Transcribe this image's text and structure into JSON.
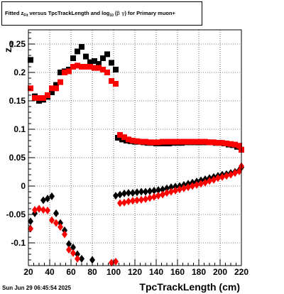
{
  "title_parts": {
    "prefix": "Fitted  z",
    "z_sub": "Fit",
    "middle": "  versus TpcTrackLength and log",
    "log_sub": "10",
    "bg_open": " (",
    "beta": "β",
    "gamma": "γ",
    "suffix": ") for Primary muon+"
  },
  "ylabel_parts": {
    "main": "z",
    "sub": "Fit"
  },
  "xlabel": "TpcTrackLength (cm)",
  "date": "Sun Jun 29 06:45:54 2025",
  "chart_data": {
    "type": "scatter",
    "xlim": [
      20,
      220
    ],
    "ylim": [
      -0.14,
      0.275
    ],
    "x_ticks": [
      20,
      40,
      60,
      80,
      100,
      120,
      140,
      160,
      180,
      200,
      220
    ],
    "y_ticks": [
      -0.1,
      -0.05,
      0,
      0.05,
      0.1,
      0.15,
      0.2,
      0.25
    ],
    "x_tick_labels": [
      "20",
      "40",
      "60",
      "80",
      "100",
      "120",
      "140",
      "160",
      "180",
      "200",
      "220"
    ],
    "y_tick_labels": [
      "-0.1",
      "-0.05",
      "0",
      "0.05",
      "0.1",
      "0.15",
      "0.2",
      "0.25"
    ],
    "grid": true,
    "series": [
      {
        "color": "#000000",
        "marker": "square",
        "points": [
          [
            22,
            0.222
          ],
          [
            26,
            0.158
          ],
          [
            30,
            0.15
          ],
          [
            34,
            0.152
          ],
          [
            38,
            0.157
          ],
          [
            42,
            0.165
          ],
          [
            46,
            0.178
          ],
          [
            50,
            0.2
          ],
          [
            54,
            0.202
          ],
          [
            58,
            0.205
          ],
          [
            62,
            0.225
          ],
          [
            66,
            0.237
          ],
          [
            70,
            0.245
          ],
          [
            74,
            0.228
          ],
          [
            78,
            0.218
          ],
          [
            82,
            0.22
          ],
          [
            86,
            0.215
          ],
          [
            90,
            0.225
          ],
          [
            94,
            0.232
          ],
          [
            98,
            0.217
          ],
          [
            102,
            0.205
          ],
          [
            104,
            0.085
          ],
          [
            108,
            0.082
          ],
          [
            112,
            0.08
          ],
          [
            116,
            0.079
          ],
          [
            120,
            0.078
          ],
          [
            124,
            0.078
          ],
          [
            128,
            0.077
          ],
          [
            132,
            0.076
          ],
          [
            136,
            0.076
          ],
          [
            140,
            0.075
          ],
          [
            144,
            0.075
          ],
          [
            148,
            0.075
          ],
          [
            152,
            0.075
          ],
          [
            156,
            0.076
          ],
          [
            160,
            0.076
          ],
          [
            164,
            0.076
          ],
          [
            168,
            0.077
          ],
          [
            172,
            0.077
          ],
          [
            176,
            0.077
          ],
          [
            180,
            0.077
          ],
          [
            184,
            0.077
          ],
          [
            188,
            0.077
          ],
          [
            192,
            0.077
          ],
          [
            196,
            0.076
          ],
          [
            200,
            0.076
          ],
          [
            204,
            0.075
          ],
          [
            208,
            0.073
          ],
          [
            212,
            0.072
          ],
          [
            216,
            0.069
          ],
          [
            220,
            0.064
          ]
        ]
      },
      {
        "color": "#ff0000",
        "marker": "square",
        "points": [
          [
            22,
            0.172
          ],
          [
            26,
            0.155
          ],
          [
            30,
            0.155
          ],
          [
            34,
            0.155
          ],
          [
            38,
            0.16
          ],
          [
            42,
            0.172
          ],
          [
            46,
            0.172
          ],
          [
            50,
            0.183
          ],
          [
            54,
            0.2
          ],
          [
            58,
            0.202
          ],
          [
            62,
            0.21
          ],
          [
            66,
            0.212
          ],
          [
            70,
            0.21
          ],
          [
            74,
            0.21
          ],
          [
            78,
            0.21
          ],
          [
            82,
            0.208
          ],
          [
            86,
            0.208
          ],
          [
            90,
            0.205
          ],
          [
            94,
            0.2
          ],
          [
            98,
            0.185
          ],
          [
            102,
            0.18
          ],
          [
            106,
            0.09
          ],
          [
            110,
            0.086
          ],
          [
            114,
            0.082
          ],
          [
            118,
            0.08
          ],
          [
            122,
            0.079
          ],
          [
            126,
            0.078
          ],
          [
            130,
            0.078
          ],
          [
            134,
            0.077
          ],
          [
            138,
            0.077
          ],
          [
            142,
            0.077
          ],
          [
            146,
            0.078
          ],
          [
            150,
            0.078
          ],
          [
            154,
            0.078
          ],
          [
            158,
            0.078
          ],
          [
            162,
            0.078
          ],
          [
            166,
            0.078
          ],
          [
            170,
            0.078
          ],
          [
            174,
            0.078
          ],
          [
            178,
            0.078
          ],
          [
            182,
            0.078
          ],
          [
            186,
            0.078
          ],
          [
            190,
            0.077
          ],
          [
            194,
            0.077
          ],
          [
            198,
            0.076
          ],
          [
            202,
            0.076
          ],
          [
            206,
            0.075
          ],
          [
            210,
            0.074
          ],
          [
            214,
            0.073
          ],
          [
            218,
            0.071
          ],
          [
            220,
            0.064
          ]
        ]
      },
      {
        "color": "#000000",
        "marker": "diamond",
        "points": [
          [
            22,
            -0.062
          ],
          [
            26,
            -0.048
          ],
          [
            30,
            -0.04
          ],
          [
            34,
            -0.025
          ],
          [
            38,
            -0.022
          ],
          [
            42,
            -0.018
          ],
          [
            46,
            -0.048
          ],
          [
            50,
            -0.065
          ],
          [
            54,
            -0.078
          ],
          [
            58,
            -0.102
          ],
          [
            62,
            -0.108
          ],
          [
            66,
            -0.12
          ],
          [
            70,
            -0.128
          ],
          [
            80,
            -0.13
          ],
          [
            102,
            -0.017
          ],
          [
            106,
            -0.015
          ],
          [
            110,
            -0.013
          ],
          [
            114,
            -0.012
          ],
          [
            118,
            -0.012
          ],
          [
            122,
            -0.011
          ],
          [
            126,
            -0.01
          ],
          [
            130,
            -0.01
          ],
          [
            134,
            -0.009
          ],
          [
            138,
            -0.008
          ],
          [
            142,
            -0.007
          ],
          [
            146,
            -0.006
          ],
          [
            150,
            -0.004
          ],
          [
            154,
            -0.002
          ],
          [
            158,
            -0.001
          ],
          [
            162,
            0.0
          ],
          [
            166,
            0.002
          ],
          [
            170,
            0.004
          ],
          [
            174,
            0.006
          ],
          [
            178,
            0.008
          ],
          [
            182,
            0.01
          ],
          [
            186,
            0.012
          ],
          [
            190,
            0.014
          ],
          [
            194,
            0.016
          ],
          [
            198,
            0.018
          ],
          [
            202,
            0.02
          ],
          [
            206,
            0.021
          ],
          [
            210,
            0.023
          ],
          [
            214,
            0.025
          ],
          [
            218,
            0.028
          ],
          [
            220,
            0.033
          ]
        ]
      },
      {
        "color": "#ff0000",
        "marker": "diamond",
        "points": [
          [
            22,
            -0.075
          ],
          [
            26,
            -0.042
          ],
          [
            30,
            -0.04
          ],
          [
            34,
            -0.042
          ],
          [
            38,
            -0.043
          ],
          [
            42,
            -0.06
          ],
          [
            46,
            -0.065
          ],
          [
            50,
            -0.072
          ],
          [
            54,
            -0.085
          ],
          [
            58,
            -0.112
          ],
          [
            62,
            -0.118
          ],
          [
            66,
            -0.128
          ],
          [
            98,
            -0.135
          ],
          [
            102,
            -0.133
          ],
          [
            106,
            -0.03
          ],
          [
            110,
            -0.029
          ],
          [
            114,
            -0.027
          ],
          [
            118,
            -0.026
          ],
          [
            122,
            -0.025
          ],
          [
            126,
            -0.024
          ],
          [
            130,
            -0.023
          ],
          [
            134,
            -0.021
          ],
          [
            138,
            -0.019
          ],
          [
            142,
            -0.017
          ],
          [
            146,
            -0.015
          ],
          [
            150,
            -0.012
          ],
          [
            154,
            -0.01
          ],
          [
            158,
            -0.008
          ],
          [
            162,
            -0.006
          ],
          [
            166,
            -0.004
          ],
          [
            170,
            -0.002
          ],
          [
            174,
            0.0
          ],
          [
            178,
            0.002
          ],
          [
            182,
            0.004
          ],
          [
            186,
            0.006
          ],
          [
            190,
            0.009
          ],
          [
            194,
            0.011
          ],
          [
            198,
            0.014
          ],
          [
            202,
            0.016
          ],
          [
            206,
            0.018
          ],
          [
            210,
            0.02
          ],
          [
            214,
            0.023
          ],
          [
            218,
            0.026
          ],
          [
            220,
            0.035
          ]
        ]
      }
    ]
  }
}
